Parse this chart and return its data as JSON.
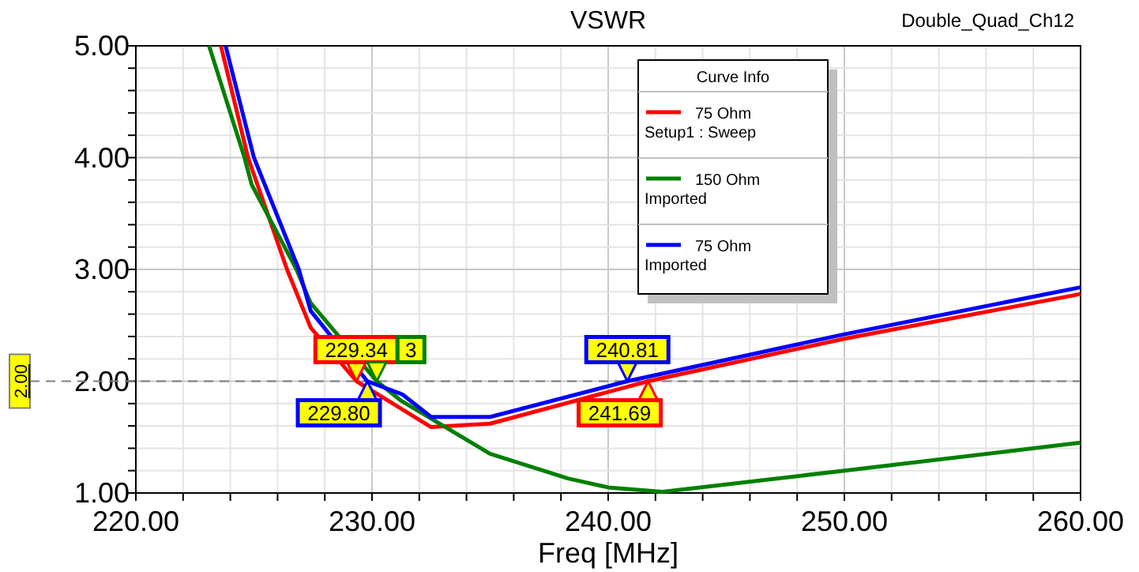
{
  "chart_data": {
    "type": "line",
    "title": "VSWR",
    "xlabel": "Freq [MHz]",
    "legend_title": "Curve Info",
    "legend": "top right",
    "grid": true,
    "marker": "none",
    "line_style": "solid",
    "xlim": [
      220,
      260
    ],
    "xticks": [
      {
        "value": 220,
        "label": "220.00"
      },
      {
        "value": 222,
        "label": null
      },
      {
        "value": 224,
        "label": null
      },
      {
        "value": 226,
        "label": null
      },
      {
        "value": 228,
        "label": null
      },
      {
        "value": 230,
        "label": "230.00"
      },
      {
        "value": 232,
        "label": null
      },
      {
        "value": 234,
        "label": null
      },
      {
        "value": 236,
        "label": null
      },
      {
        "value": 238,
        "label": null
      },
      {
        "value": 240,
        "label": "240.00"
      },
      {
        "value": 242,
        "label": null
      },
      {
        "value": 244,
        "label": null
      },
      {
        "value": 246,
        "label": null
      },
      {
        "value": 248,
        "label": null
      },
      {
        "value": 250,
        "label": "250.00"
      },
      {
        "value": 252,
        "label": null
      },
      {
        "value": 254,
        "label": null
      },
      {
        "value": 256,
        "label": null
      },
      {
        "value": 258,
        "label": null
      },
      {
        "value": 260,
        "label": "260.00"
      }
    ],
    "ylim": [
      1,
      5
    ],
    "yticks": [
      {
        "value": 1,
        "label": "1.00"
      },
      {
        "value": 1.2,
        "label": null
      },
      {
        "value": 1.4,
        "label": null
      },
      {
        "value": 1.6,
        "label": null
      },
      {
        "value": 1.8,
        "label": null
      },
      {
        "value": 2,
        "label": "2.00"
      },
      {
        "value": 2.2,
        "label": null
      },
      {
        "value": 2.4,
        "label": null
      },
      {
        "value": 2.6,
        "label": null
      },
      {
        "value": 2.8,
        "label": null
      },
      {
        "value": 3,
        "label": "3.00"
      },
      {
        "value": 3.2,
        "label": null
      },
      {
        "value": 3.4,
        "label": null
      },
      {
        "value": 3.6,
        "label": null
      },
      {
        "value": 3.8,
        "label": null
      },
      {
        "value": 4,
        "label": "4.00"
      },
      {
        "value": 4.2,
        "label": null
      },
      {
        "value": 4.4,
        "label": null
      },
      {
        "value": 4.6,
        "label": null
      },
      {
        "value": 4.8,
        "label": null
      },
      {
        "value": 5,
        "label": "5.00"
      }
    ],
    "series": [
      {
        "name": "75 Ohm\nSetup1 : Sweep",
        "color": "#ff0000",
        "x": [
          223.6,
          224.75,
          226.4,
          227.4,
          229.34,
          232.5,
          235,
          241.69,
          250,
          260
        ],
        "values": [
          5,
          4,
          3,
          2.48,
          2,
          1.59,
          1.62,
          2,
          2.38,
          2.78
        ]
      },
      {
        "name": "150 Ohm\nImported",
        "color": "#008000",
        "x": [
          223.1,
          224.6,
          224.9,
          226.8,
          227.4,
          230.2,
          231.2,
          235,
          238.3,
          240,
          242.3,
          250,
          260
        ],
        "values": [
          5,
          4,
          3.76,
          3,
          2.7,
          2,
          1.83,
          1.35,
          1.13,
          1.05,
          1.01,
          1.2,
          1.45
        ]
      },
      {
        "name": "75 Ohm\nImported",
        "color": "#0000ff",
        "x": [
          223.8,
          225,
          226.9,
          227.4,
          229.8,
          231.3,
          232.5,
          235,
          240.81,
          250,
          260
        ],
        "values": [
          5,
          4,
          3,
          2.63,
          2,
          1.88,
          1.68,
          1.68,
          2,
          2.42,
          2.84
        ]
      }
    ],
    "ref_lines": [
      {
        "axis": "y",
        "value": 2,
        "label": "2.00",
        "color": "#808080",
        "line_style": "dashed"
      }
    ],
    "annotations": [
      "Double_Quad_Ch12",
      {
        "text": "229.34",
        "x": 229.34,
        "y": 2
      },
      {
        "text": "229.80",
        "x": 229.8,
        "y": 2
      },
      {
        "text": "240.81",
        "x": 240.81,
        "y": 2
      },
      {
        "text": "241.69",
        "x": 241.69,
        "y": 2
      },
      {
        "text": "3",
        "x": 230.2,
        "y": 2
      }
    ]
  }
}
